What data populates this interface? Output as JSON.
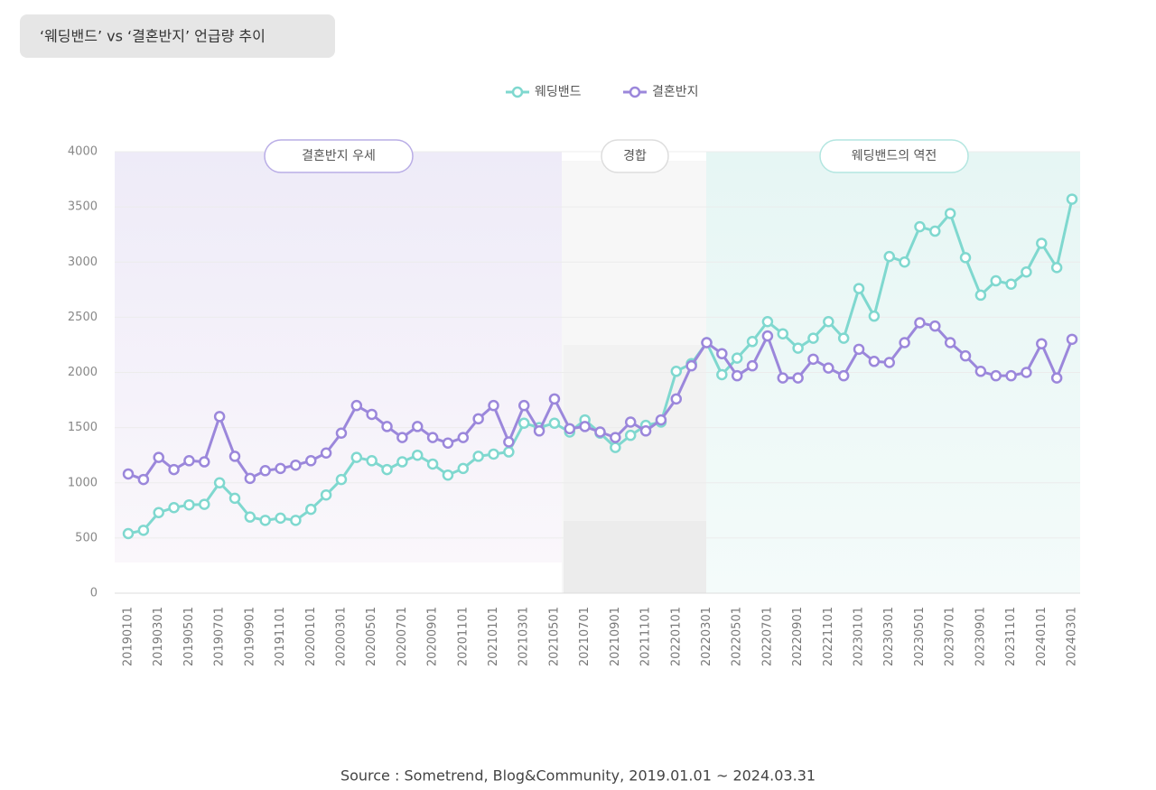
{
  "chart_data": {
    "type": "line",
    "title": "‘웨딩밴드’ vs ‘결혼반지’ 언급량 추이",
    "annotations": [
      "결혼반지 우세",
      "경합",
      "웨딩밴드의 역전"
    ],
    "source": "Source : Sometrend, Blog&Community, 2019.01.01 ~ 2024.03.31",
    "categories": [
      "20190101",
      null,
      "20190301",
      null,
      "20190501",
      null,
      "20190701",
      null,
      "20190901",
      null,
      "20191101",
      null,
      "20200101",
      null,
      "20200301",
      null,
      "20200501",
      null,
      "20200701",
      null,
      "20200901",
      null,
      "20201101",
      null,
      "20210101",
      null,
      "20210301",
      null,
      "20210501",
      null,
      "20210701",
      null,
      "20210901",
      null,
      "20211101",
      null,
      "20220101",
      null,
      "20220301",
      null,
      "20220501",
      null,
      "20220701",
      null,
      "20220901",
      null,
      "20221101",
      null,
      "20230101",
      null,
      "20230301",
      null,
      "20230501",
      null,
      "20230701",
      null,
      "20230901",
      null,
      "20231101",
      null,
      "20240101",
      null,
      "20240301"
    ],
    "series": [
      {
        "name": "웨딩밴드",
        "color": "#7fd8cf",
        "values": [
          540,
          570,
          730,
          775,
          800,
          805,
          1000,
          860,
          690,
          660,
          680,
          660,
          760,
          890,
          1030,
          1230,
          1200,
          1120,
          1190,
          1250,
          1170,
          1070,
          1130,
          1240,
          1260,
          1280,
          1540,
          1500,
          1540,
          1460,
          1570,
          1450,
          1320,
          1430,
          1520,
          1550,
          2010,
          2080,
          2270,
          1980,
          2130,
          2280,
          2460,
          2350,
          2220,
          2310,
          2460,
          2310,
          2760,
          2510,
          3050,
          3000,
          3320,
          3280,
          3440,
          3040,
          2700,
          2830,
          2800,
          2910,
          3170,
          2950,
          3570
        ]
      },
      {
        "name": "결혼반지",
        "color": "#9b87db",
        "values": [
          1080,
          1030,
          1230,
          1120,
          1200,
          1190,
          1600,
          1240,
          1040,
          1110,
          1130,
          1160,
          1200,
          1270,
          1450,
          1700,
          1620,
          1510,
          1410,
          1510,
          1410,
          1360,
          1410,
          1580,
          1700,
          1370,
          1700,
          1470,
          1760,
          1490,
          1510,
          1460,
          1410,
          1550,
          1470,
          1570,
          1760,
          2060,
          2270,
          2170,
          1970,
          2060,
          2330,
          1950,
          1950,
          2120,
          2040,
          1970,
          2210,
          2100,
          2090,
          2270,
          2450,
          2420,
          2270,
          2150,
          2010,
          1970,
          1970,
          2000,
          2260,
          1950,
          2300
        ]
      }
    ],
    "ylim": [
      0,
      4000
    ],
    "yticks": [
      0,
      500,
      1000,
      1500,
      2000,
      2500,
      3000,
      3500,
      4000
    ],
    "grid": true
  }
}
